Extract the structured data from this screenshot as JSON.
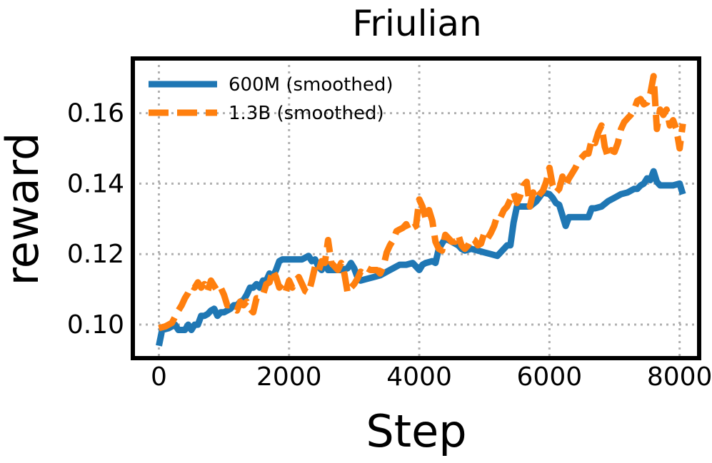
{
  "chart_data": {
    "type": "line",
    "title": "Friulian",
    "xlabel": "Step",
    "ylabel": "reward",
    "xlim": [
      -400,
      8300
    ],
    "ylim": [
      0.0905,
      0.1755
    ],
    "xticks": [
      0,
      2000,
      4000,
      6000,
      8000
    ],
    "xtick_labels": [
      "0",
      "2000",
      "4000",
      "6000",
      "8000"
    ],
    "yticks": [
      0.1,
      0.12,
      0.14,
      0.16
    ],
    "ytick_labels": [
      "0.10",
      "0.12",
      "0.14",
      "0.16"
    ],
    "grid": true,
    "legend_position": "top-left",
    "series": [
      {
        "name": "600M (smoothed)",
        "color": "#1f77b4",
        "dash": "solid",
        "x": [
          0,
          50,
          150,
          250,
          300,
          350,
          400,
          450,
          500,
          550,
          600,
          650,
          700,
          750,
          800,
          850,
          900,
          950,
          1000,
          1050,
          1100,
          1150,
          1200,
          1250,
          1300,
          1350,
          1400,
          1450,
          1500,
          1550,
          1600,
          1650,
          1700,
          1750,
          1800,
          1850,
          1900,
          2000,
          2100,
          2200,
          2300,
          2350,
          2400,
          2450,
          2500,
          2550,
          2600,
          2700,
          2800,
          2900,
          2950,
          3000,
          3050,
          3100,
          3200,
          3300,
          3400,
          3500,
          3600,
          3700,
          3800,
          3900,
          4000,
          4050,
          4100,
          4200,
          4250,
          4300,
          4400,
          4450,
          4500,
          4550,
          4600,
          4650,
          4700,
          4800,
          4900,
          5000,
          5100,
          5200,
          5300,
          5350,
          5400,
          5450,
          5500,
          5600,
          5700,
          5800,
          5900,
          6000,
          6050,
          6100,
          6150,
          6200,
          6250,
          6300,
          6400,
          6500,
          6600,
          6650,
          6700,
          6800,
          6900,
          7000,
          7100,
          7200,
          7300,
          7350,
          7400,
          7450,
          7500,
          7550,
          7600,
          7650,
          7700,
          7750,
          7800,
          7900,
          8000,
          8050
        ],
        "y": [
          0.094,
          0.0985,
          0.099,
          0.1,
          0.0985,
          0.0985,
          0.0985,
          0.1,
          0.0985,
          0.1,
          0.1,
          0.1025,
          0.1025,
          0.103,
          0.104,
          0.1045,
          0.1025,
          0.1035,
          0.1035,
          0.104,
          0.1045,
          0.1055,
          0.1055,
          0.1065,
          0.107,
          0.1085,
          0.1105,
          0.1105,
          0.1115,
          0.1105,
          0.1125,
          0.1125,
          0.1145,
          0.1135,
          0.1155,
          0.118,
          0.1185,
          0.1185,
          0.1185,
          0.1185,
          0.1195,
          0.118,
          0.1185,
          0.1165,
          0.1155,
          0.118,
          0.1155,
          0.1155,
          0.1155,
          0.116,
          0.1175,
          0.116,
          0.1135,
          0.1125,
          0.113,
          0.1135,
          0.114,
          0.115,
          0.116,
          0.117,
          0.117,
          0.1175,
          0.1155,
          0.117,
          0.1175,
          0.118,
          0.1175,
          0.1215,
          0.1245,
          0.124,
          0.1235,
          0.123,
          0.1225,
          0.1215,
          0.121,
          0.1215,
          0.121,
          0.1205,
          0.12,
          0.1195,
          0.1215,
          0.1225,
          0.1225,
          0.129,
          0.1335,
          0.1335,
          0.1335,
          0.135,
          0.1375,
          0.137,
          0.136,
          0.1345,
          0.134,
          0.131,
          0.128,
          0.1305,
          0.1305,
          0.1305,
          0.1305,
          0.133,
          0.133,
          0.1335,
          0.135,
          0.136,
          0.137,
          0.1375,
          0.1385,
          0.1385,
          0.1395,
          0.14,
          0.1415,
          0.141,
          0.1435,
          0.1405,
          0.1395,
          0.1395,
          0.1395,
          0.1395,
          0.14,
          0.137
        ]
      },
      {
        "name": "1.3B (smoothed)",
        "color": "#ff7f0e",
        "dash": "dashed",
        "x": [
          0,
          100,
          200,
          300,
          350,
          400,
          450,
          500,
          550,
          600,
          650,
          700,
          750,
          800,
          850,
          900,
          950,
          1000,
          1050,
          1100,
          1150,
          1200,
          1250,
          1300,
          1350,
          1400,
          1450,
          1500,
          1550,
          1600,
          1650,
          1700,
          1750,
          1800,
          1850,
          1900,
          1950,
          2000,
          2050,
          2100,
          2150,
          2200,
          2250,
          2300,
          2350,
          2400,
          2450,
          2500,
          2550,
          2600,
          2650,
          2700,
          2750,
          2800,
          2850,
          2900,
          2950,
          3000,
          3050,
          3100,
          3150,
          3200,
          3250,
          3300,
          3350,
          3400,
          3450,
          3500,
          3550,
          3600,
          3650,
          3700,
          3750,
          3800,
          3850,
          3900,
          3950,
          4000,
          4050,
          4100,
          4150,
          4200,
          4250,
          4300,
          4350,
          4400,
          4450,
          4500,
          4550,
          4600,
          4650,
          4700,
          4750,
          4800,
          4850,
          4900,
          4950,
          5000,
          5050,
          5100,
          5150,
          5200,
          5250,
          5300,
          5350,
          5400,
          5450,
          5500,
          5550,
          5600,
          5650,
          5700,
          5750,
          5800,
          5850,
          5900,
          5950,
          6000,
          6050,
          6100,
          6150,
          6200,
          6250,
          6300,
          6350,
          6400,
          6450,
          6500,
          6550,
          6600,
          6650,
          6700,
          6750,
          6800,
          6850,
          6900,
          6950,
          7000,
          7050,
          7100,
          7150,
          7200,
          7250,
          7300,
          7350,
          7400,
          7450,
          7500,
          7550,
          7600,
          7650,
          7700,
          7750,
          7800,
          7850,
          7900,
          7950,
          8000,
          8050
        ],
        "y": [
          0.099,
          0.0995,
          0.1005,
          0.104,
          0.1055,
          0.1075,
          0.109,
          0.111,
          0.1105,
          0.112,
          0.1105,
          0.1115,
          0.1095,
          0.1125,
          0.111,
          0.1095,
          0.1105,
          0.1085,
          0.1055,
          0.1055,
          0.1045,
          0.104,
          0.1065,
          0.1055,
          0.1065,
          0.1045,
          0.1035,
          0.1075,
          0.1075,
          0.1085,
          0.1115,
          0.112,
          0.1155,
          0.1135,
          0.1105,
          0.1115,
          0.1095,
          0.1125,
          0.1105,
          0.1125,
          0.1135,
          0.1115,
          0.1095,
          0.109,
          0.1125,
          0.1165,
          0.115,
          0.118,
          0.1175,
          0.124,
          0.1175,
          0.1165,
          0.1155,
          0.1175,
          0.1145,
          0.109,
          0.1105,
          0.1115,
          0.113,
          0.115,
          0.1145,
          0.116,
          0.1155,
          0.1155,
          0.1155,
          0.1145,
          0.1165,
          0.1205,
          0.1225,
          0.124,
          0.1265,
          0.127,
          0.1275,
          0.1285,
          0.1265,
          0.1275,
          0.128,
          0.1355,
          0.1335,
          0.13,
          0.1325,
          0.1295,
          0.1235,
          0.1215,
          0.121,
          0.1255,
          0.1245,
          0.1235,
          0.1235,
          0.1255,
          0.1225,
          0.1215,
          0.1225,
          0.1245,
          0.124,
          0.1225,
          0.123,
          0.126,
          0.1245,
          0.126,
          0.128,
          0.131,
          0.1305,
          0.1325,
          0.1335,
          0.1355,
          0.1375,
          0.1345,
          0.1365,
          0.1395,
          0.1405,
          0.1335,
          0.1375,
          0.1355,
          0.137,
          0.138,
          0.1405,
          0.1445,
          0.1395,
          0.1375,
          0.1385,
          0.142,
          0.1395,
          0.1415,
          0.143,
          0.1445,
          0.1465,
          0.1475,
          0.1485,
          0.1485,
          0.1525,
          0.1515,
          0.1545,
          0.1565,
          0.1505,
          0.1475,
          0.1495,
          0.149,
          0.1515,
          0.1555,
          0.1575,
          0.1585,
          0.1595,
          0.161,
          0.1635,
          0.164,
          0.1625,
          0.163,
          0.1655,
          0.1705,
          0.1555,
          0.161,
          0.1595,
          0.161,
          0.1565,
          0.158,
          0.1555,
          0.15,
          0.157
        ]
      }
    ]
  }
}
